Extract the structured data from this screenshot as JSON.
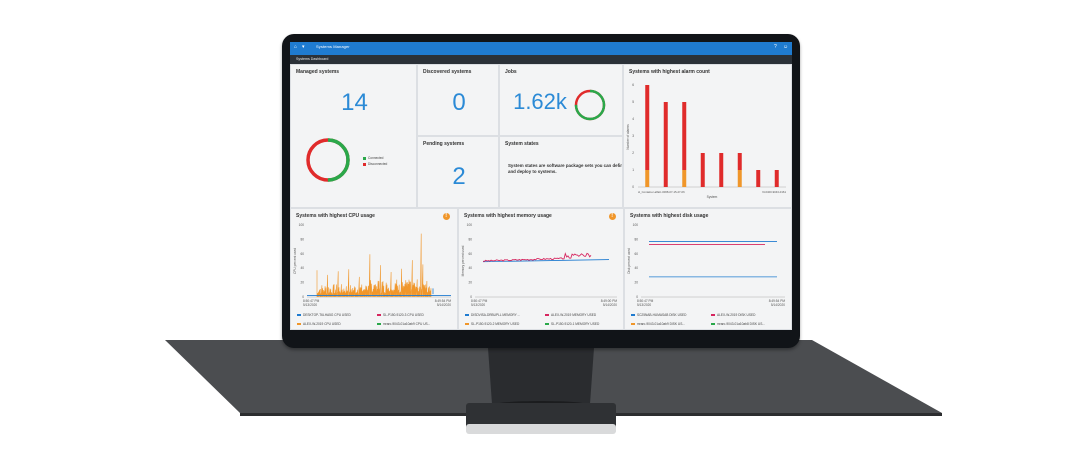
{
  "app": {
    "title": "Systems Manager",
    "breadcrumb": "Systems Dashboard",
    "help_icon": "help-icon",
    "user_icon": "user-icon",
    "home_icon": "home-icon",
    "menu_icon": "menu-icon"
  },
  "managed": {
    "title": "Managed systems",
    "count": "14",
    "legend": [
      {
        "label": "Connected",
        "color": "#2aa84a"
      },
      {
        "label": "Disconnected",
        "color": "#e02b2b"
      }
    ],
    "donut_connected_fraction": 0.5
  },
  "discovered": {
    "title": "Discovered systems",
    "count": "0"
  },
  "pending": {
    "title": "Pending systems",
    "count": "2"
  },
  "jobs": {
    "title": "Jobs",
    "count": "1.62k",
    "donut_fraction": 0.75
  },
  "states": {
    "title": "System states",
    "description": "System states are software package sets you can define and deploy to systems."
  },
  "alarm": {
    "title": "Systems with highest alarm count",
    "ylabel": "Number of alarms",
    "xlabel": "System",
    "x_tick_left": "sl_Container-a8aC-0068-07-15-27-06",
    "x_tick_right": "ftl-0400-9043-0161",
    "y_ticks": [
      "0",
      "1",
      "2",
      "3",
      "4",
      "5",
      "6"
    ],
    "ylim": [
      0,
      6
    ],
    "bars": [
      {
        "red": 5,
        "orange": 1
      },
      {
        "red": 5,
        "orange": 0
      },
      {
        "red": 4,
        "orange": 1
      },
      {
        "red": 2,
        "orange": 0
      },
      {
        "red": 2,
        "orange": 0
      },
      {
        "red": 1,
        "orange": 1
      },
      {
        "red": 1,
        "orange": 0
      },
      {
        "red": 1,
        "orange": 0
      }
    ],
    "colors": {
      "red": "#e02b2b",
      "orange": "#f0962a"
    }
  },
  "cpu": {
    "title": "Systems with highest CPU usage",
    "ylabel": "CPU percent used",
    "y_ticks": [
      "0",
      "20",
      "40",
      "60",
      "80",
      "100"
    ],
    "ylim": [
      0,
      100
    ],
    "x_start": "8:50:47 PM\n5/13/2020",
    "x_start_time": "8:50:47 PM",
    "x_start_date": "5/13/2020",
    "x_end_time": "8:49:54 PM",
    "x_end_date": "5/14/2020",
    "legend": [
      {
        "label": "DESKTOP-T6LHA5G CPU USED",
        "color": "#1f7bd0"
      },
      {
        "label": "SL-P150-9120-3 CPU USED",
        "color": "#d6265f"
      },
      {
        "label": "ALEX-W-2019 CPU USED",
        "color": "#f0962a"
      },
      {
        "label": "mraro-9043-01a10ab9 CPU US...",
        "color": "#2aa84a"
      }
    ]
  },
  "memory": {
    "title": "Systems with highest memory usage",
    "ylabel": "Memory percent used",
    "y_ticks": [
      "0",
      "20",
      "40",
      "60",
      "80",
      "100"
    ],
    "ylim": [
      0,
      100
    ],
    "x_start_time": "8:50:47 PM",
    "x_start_date": "5/13/2020",
    "x_end_time": "8:49:00 PM",
    "x_end_date": "5/14/2020",
    "legend": [
      {
        "label": "DISDVISA-DRBUPLL MEMORY ...",
        "color": "#1f7bd0"
      },
      {
        "label": "ALEX-W-2019 MEMORY USED",
        "color": "#d6265f"
      },
      {
        "label": "SL-P150-9120-2 MEMORY USED",
        "color": "#f0962a"
      },
      {
        "label": "SL-P150-9120-1 MEMORY USED",
        "color": "#2aa84a"
      }
    ]
  },
  "disk": {
    "title": "Systems with highest disk usage",
    "ylabel": "Disk percent used",
    "y_ticks": [
      "0",
      "20",
      "40",
      "60",
      "80",
      "100"
    ],
    "ylim": [
      0,
      100
    ],
    "x_start_time": "8:50:47 PM",
    "x_start_date": "5/13/2020",
    "x_end_time": "8:49:54 PM",
    "x_end_date": "5/14/2020",
    "series_levels": [
      77,
      73,
      28
    ],
    "legend": [
      {
        "label": "SC25NAB-HUMASAB DISK USED",
        "color": "#1f7bd0"
      },
      {
        "label": "ALEX-W-2019 DISK USED",
        "color": "#d6265f"
      },
      {
        "label": "mraro-9043-01a10ab9 DISK US...",
        "color": "#f0962a"
      },
      {
        "label": "mraro-9043-01a10ab8 DISK US...",
        "color": "#2aa84a"
      }
    ]
  }
}
